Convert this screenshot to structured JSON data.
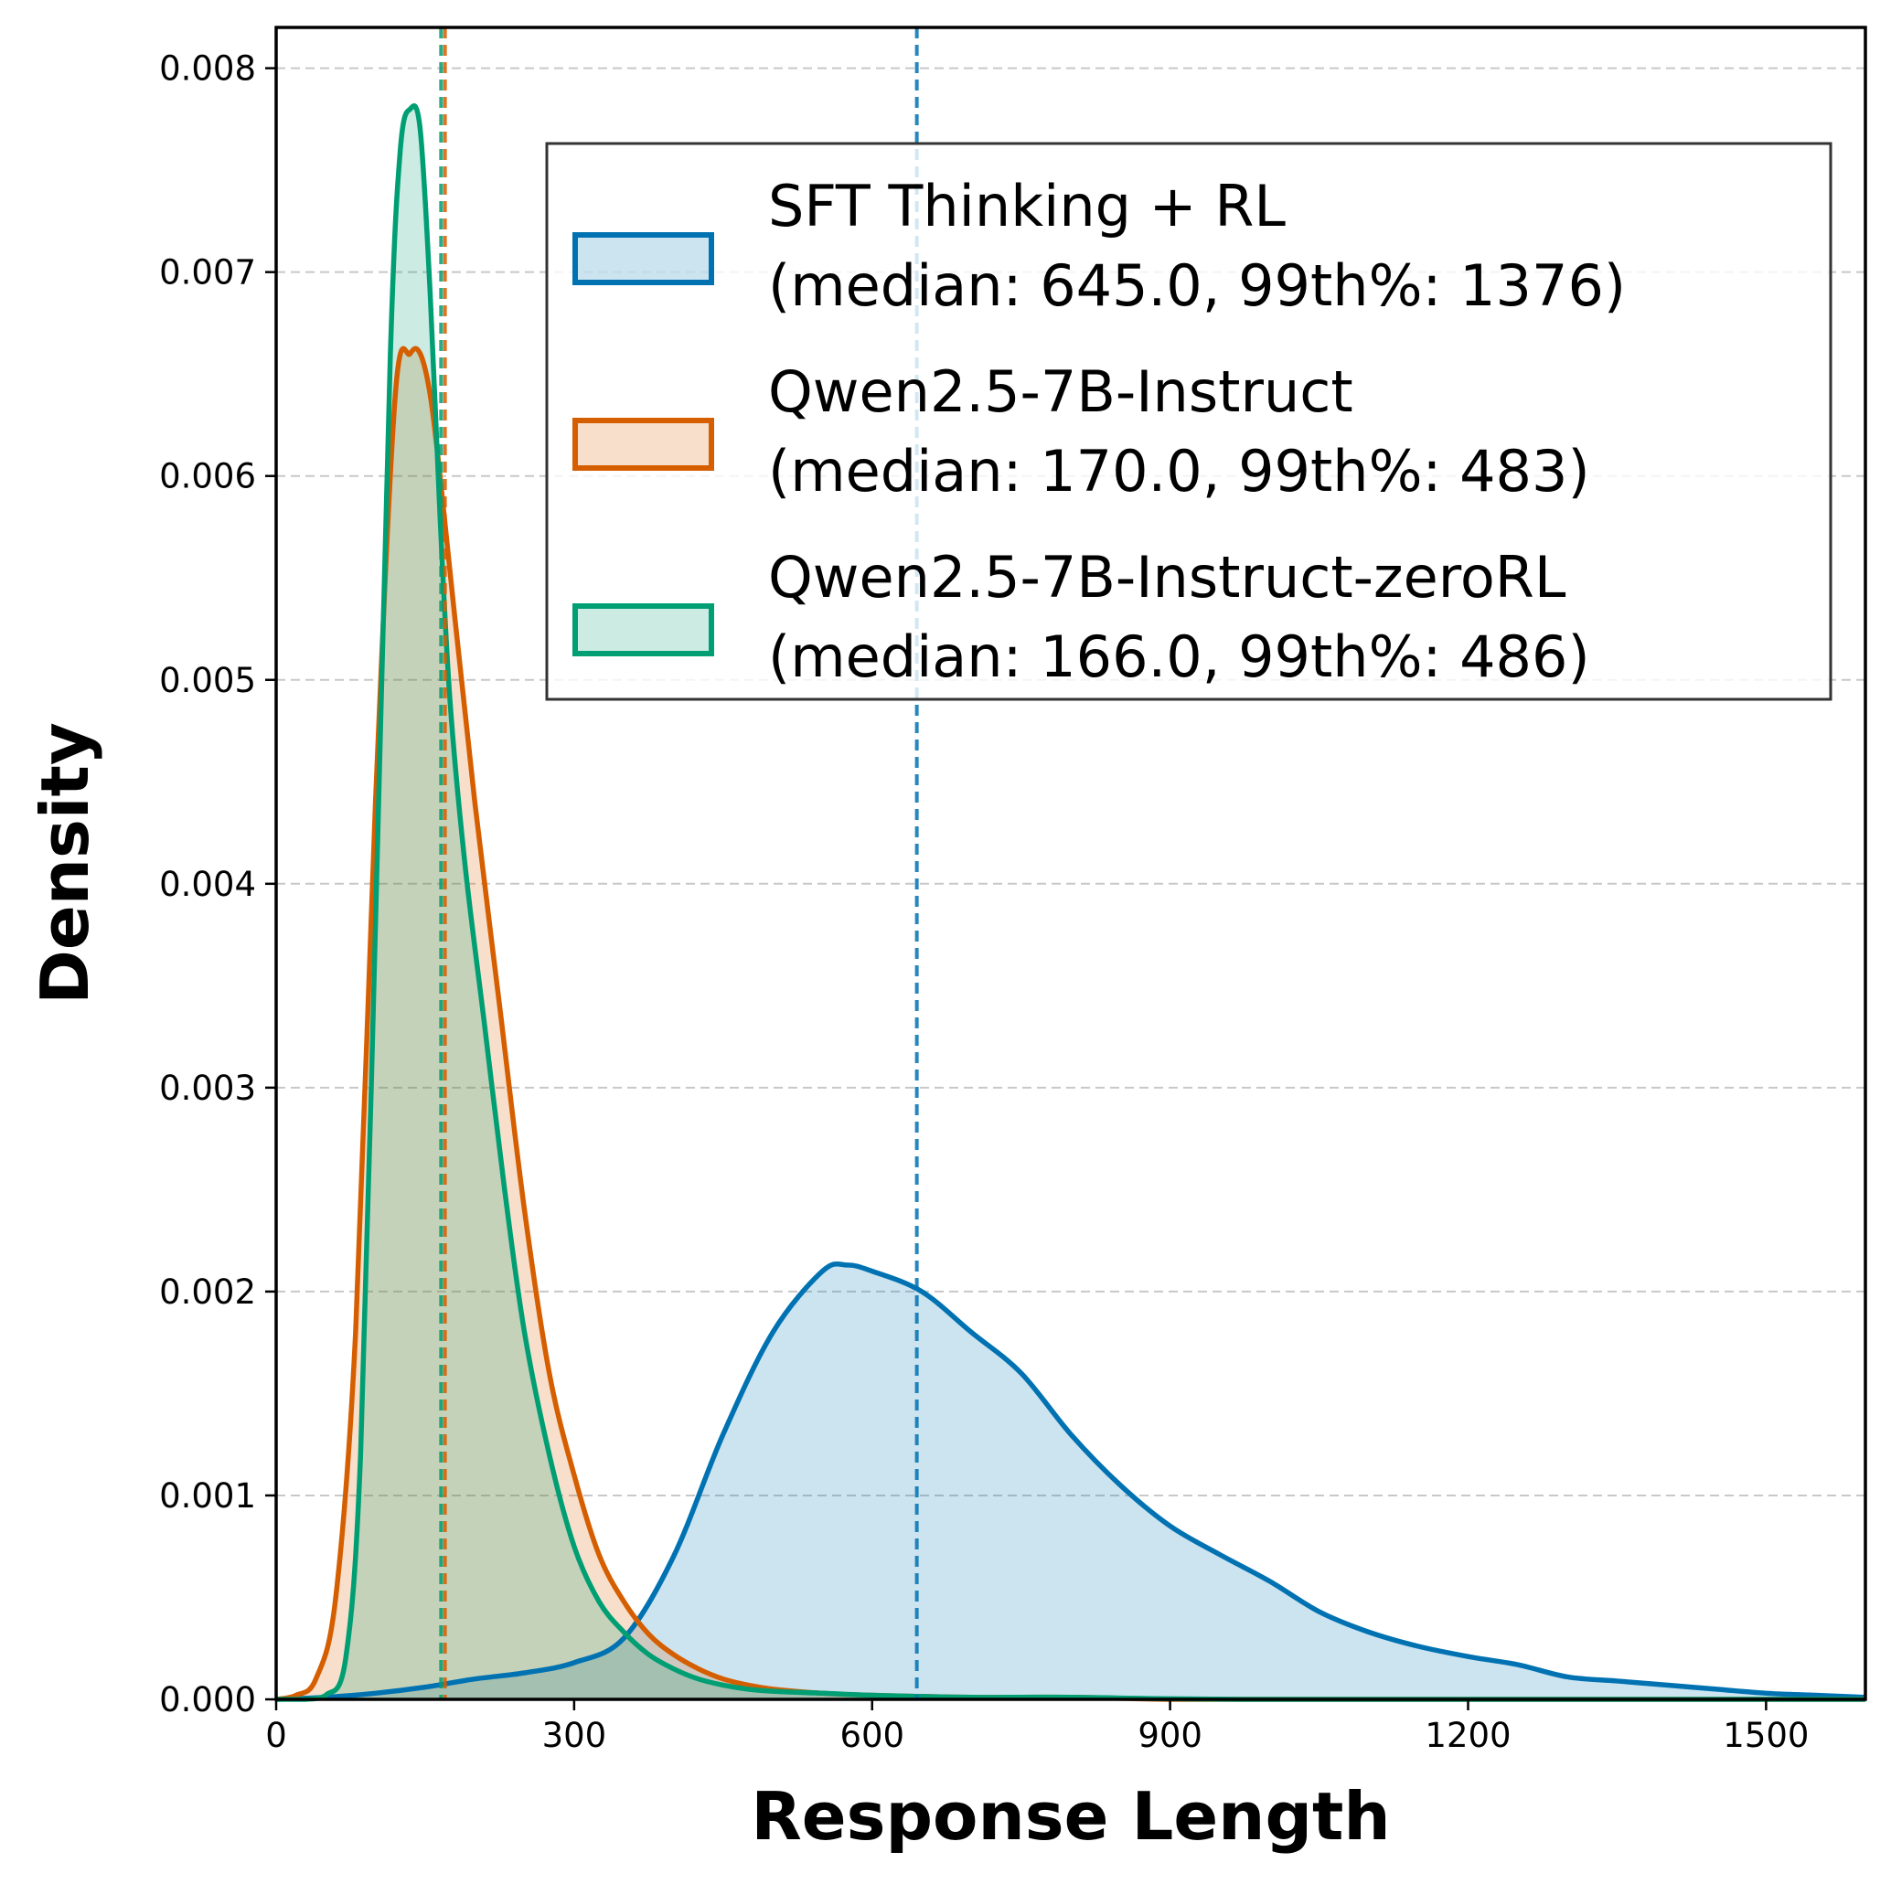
{
  "chart_data": {
    "type": "area",
    "xlabel": "Response Length",
    "ylabel": "Density",
    "xlim": [
      0,
      1600
    ],
    "ylim": [
      0,
      0.0082
    ],
    "x_ticks": [
      0,
      300,
      600,
      900,
      1200,
      1500
    ],
    "x_tick_labels": [
      "0",
      "300",
      "600",
      "900",
      "1200",
      "1500"
    ],
    "y_ticks": [
      0,
      0.001,
      0.002,
      0.003,
      0.004,
      0.005,
      0.006,
      0.007,
      0.008
    ],
    "y_tick_labels": [
      "0.000",
      "0.001",
      "0.002",
      "0.003",
      "0.004",
      "0.005",
      "0.006",
      "0.007",
      "0.008"
    ],
    "grid": "horizontal dashed",
    "legend_position": "upper-right",
    "series": [
      {
        "name": "SFT Thinking + RL",
        "legend_detail": "(median: 645.0, 99th%: 1376)",
        "color": "#0072B2",
        "median": 645.0,
        "x": [
          0,
          50,
          100,
          150,
          200,
          250,
          300,
          350,
          400,
          450,
          500,
          550,
          575,
          600,
          650,
          700,
          750,
          800,
          850,
          900,
          950,
          1000,
          1050,
          1100,
          1150,
          1200,
          1250,
          1300,
          1350,
          1400,
          1450,
          1500,
          1550,
          1600
        ],
        "y": [
          0.0,
          1e-05,
          3e-05,
          6e-05,
          0.0001,
          0.00013,
          0.00018,
          0.0003,
          0.0007,
          0.0013,
          0.0018,
          0.0021,
          0.00213,
          0.0021,
          0.002,
          0.0018,
          0.0016,
          0.0013,
          0.00105,
          0.00085,
          0.00071,
          0.00058,
          0.00043,
          0.00033,
          0.00026,
          0.00021,
          0.00017,
          0.00011,
          9e-05,
          7e-05,
          5e-05,
          3e-05,
          2e-05,
          1e-05
        ]
      },
      {
        "name": "Qwen2.5-7B-Instruct",
        "legend_detail": "(median: 170.0, 99th%: 483)",
        "color": "#D55E00",
        "median": 170.0,
        "x": [
          0,
          20,
          40,
          60,
          80,
          100,
          120,
          135,
          145,
          155,
          165,
          180,
          200,
          225,
          250,
          275,
          300,
          325,
          350,
          375,
          400,
          425,
          450,
          475,
          500,
          550,
          600,
          700,
          800,
          900,
          1000,
          1600
        ],
        "y": [
          0.0,
          2e-05,
          0.0001,
          0.0005,
          0.0018,
          0.0044,
          0.0064,
          0.0066,
          0.0066,
          0.0064,
          0.006,
          0.0053,
          0.0044,
          0.0034,
          0.0024,
          0.0016,
          0.0011,
          0.00071,
          0.00048,
          0.00032,
          0.00022,
          0.00015,
          0.0001,
          7e-05,
          5e-05,
          3e-05,
          2e-05,
          1e-05,
          1e-05,
          0.0,
          0.0,
          0.0
        ]
      },
      {
        "name": "Qwen2.5-7B-Instruct-zeroRL",
        "legend_detail": "(median: 166.0, 99th%: 486)",
        "color": "#009E73",
        "median": 166.0,
        "x": [
          0,
          30,
          50,
          70,
          85,
          100,
          115,
          125,
          135,
          145,
          155,
          165,
          175,
          190,
          210,
          230,
          250,
          275,
          300,
          325,
          350,
          375,
          400,
          425,
          450,
          475,
          500,
          550,
          600,
          700,
          800,
          1000,
          1600
        ],
        "y": [
          0.0,
          0.0,
          2e-05,
          0.0002,
          0.0012,
          0.0038,
          0.0066,
          0.0076,
          0.0078,
          0.0077,
          0.0069,
          0.0058,
          0.0049,
          0.0041,
          0.0033,
          0.0025,
          0.0018,
          0.0012,
          0.00075,
          0.00048,
          0.00033,
          0.00022,
          0.00015,
          0.0001,
          7e-05,
          5e-05,
          4e-05,
          3e-05,
          2e-05,
          1e-05,
          1e-05,
          0.0,
          0.0
        ]
      }
    ]
  }
}
